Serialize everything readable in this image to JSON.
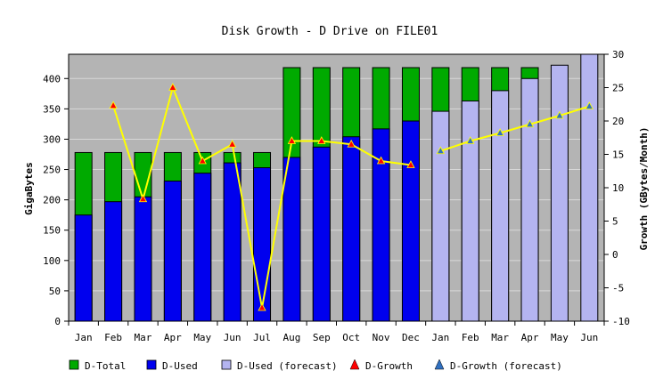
{
  "chart_data": {
    "type": "bar",
    "title": "Disk Growth - D Drive on FILE01",
    "ylabel": "GigaBytes",
    "y2label": "Growth (GBytes/Month)",
    "categories": [
      "Jan",
      "Feb",
      "Mar",
      "Apr",
      "May",
      "Jun",
      "Jul",
      "Aug",
      "Sep",
      "Oct",
      "Nov",
      "Dec",
      "Jan",
      "Feb",
      "Mar",
      "Apr",
      "May",
      "Jun"
    ],
    "ylim": [
      0,
      440
    ],
    "y2lim": [
      -10,
      30
    ],
    "yticks": [
      0,
      50,
      100,
      150,
      200,
      250,
      300,
      350,
      400
    ],
    "y2ticks": [
      -10,
      -5,
      0,
      5,
      10,
      15,
      20,
      25,
      30
    ],
    "grid": true,
    "legend_position": "bottom",
    "series": [
      {
        "name": "D-Total",
        "kind": "bar",
        "color": "#00aa00",
        "values": [
          278,
          278,
          278,
          278,
          278,
          278,
          278,
          418,
          418,
          418,
          418,
          418,
          418,
          418,
          418,
          418,
          null,
          null
        ]
      },
      {
        "name": "D-Used",
        "kind": "bar",
        "color": "#0000ee",
        "values": [
          175,
          197,
          205,
          231,
          244,
          261,
          253,
          270,
          287,
          304,
          317,
          330,
          null,
          null,
          null,
          null,
          null,
          null
        ]
      },
      {
        "name": "D-Used (forecast)",
        "kind": "bar",
        "color": "#b4b4f0",
        "values": [
          null,
          null,
          null,
          null,
          null,
          null,
          null,
          null,
          null,
          null,
          null,
          null,
          346,
          363,
          380,
          400,
          422,
          440
        ]
      },
      {
        "name": "D-Growth",
        "kind": "line",
        "axis": "right",
        "line_color": "#ffff00",
        "marker_color": "#ff0000",
        "values": [
          null,
          22.3,
          8.3,
          25,
          14,
          16.5,
          -8,
          17,
          17,
          16.5,
          14,
          13.4,
          null,
          null,
          null,
          null,
          null,
          null
        ]
      },
      {
        "name": "D-Growth (forecast)",
        "kind": "line",
        "axis": "right",
        "line_color": "#ffff00",
        "marker_color": "#3070c0",
        "values": [
          null,
          null,
          null,
          null,
          null,
          null,
          null,
          null,
          null,
          null,
          null,
          null,
          15.5,
          17,
          18.2,
          19.5,
          20.8,
          22.2
        ]
      }
    ]
  }
}
